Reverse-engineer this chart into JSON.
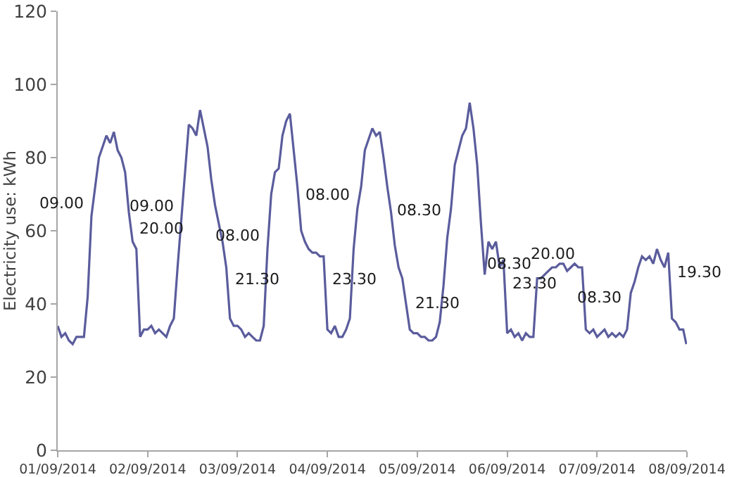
{
  "chart_data": {
    "type": "line",
    "ylabel": "Electricity use: kWh",
    "xlim": [
      "2014-09-01",
      "2014-09-08"
    ],
    "xticks": [
      {
        "value": "2014-09-01",
        "label": "01/09/2014"
      },
      {
        "value": "2014-09-02",
        "label": "02/09/2014"
      },
      {
        "value": "2014-09-03",
        "label": "03/09/2014"
      },
      {
        "value": "2014-09-04",
        "label": "04/09/2014"
      },
      {
        "value": "2014-09-05",
        "label": "05/09/2014"
      },
      {
        "value": "2014-09-06",
        "label": "06/09/2014"
      },
      {
        "value": "2014-09-07",
        "label": "07/09/2014"
      },
      {
        "value": "2014-09-08",
        "label": "08/09/2014"
      }
    ],
    "ylim": [
      0,
      120
    ],
    "yticks": [
      0,
      20,
      40,
      60,
      80,
      100,
      120
    ],
    "marker": "none",
    "line_style": "solid",
    "series": [
      {
        "color": "#5a5c9c",
        "x": [
          "2014-09-01T00:00",
          "2014-09-01T01:00",
          "2014-09-01T02:00",
          "2014-09-01T03:00",
          "2014-09-01T04:00",
          "2014-09-01T05:00",
          "2014-09-01T06:00",
          "2014-09-01T07:00",
          "2014-09-01T08:00",
          "2014-09-01T09:00",
          "2014-09-01T10:00",
          "2014-09-01T11:00",
          "2014-09-01T12:00",
          "2014-09-01T13:00",
          "2014-09-01T14:00",
          "2014-09-01T15:00",
          "2014-09-01T16:00",
          "2014-09-01T17:00",
          "2014-09-01T18:00",
          "2014-09-01T19:00",
          "2014-09-01T20:00",
          "2014-09-01T21:00",
          "2014-09-01T22:00",
          "2014-09-01T23:00",
          "2014-09-02T00:00",
          "2014-09-02T01:00",
          "2014-09-02T02:00",
          "2014-09-02T03:00",
          "2014-09-02T04:00",
          "2014-09-02T05:00",
          "2014-09-02T06:00",
          "2014-09-02T07:00",
          "2014-09-02T08:00",
          "2014-09-02T09:00",
          "2014-09-02T10:00",
          "2014-09-02T11:00",
          "2014-09-02T12:00",
          "2014-09-02T13:00",
          "2014-09-02T14:00",
          "2014-09-02T15:00",
          "2014-09-02T16:00",
          "2014-09-02T17:00",
          "2014-09-02T18:00",
          "2014-09-02T19:00",
          "2014-09-02T20:00",
          "2014-09-02T21:00",
          "2014-09-02T22:00",
          "2014-09-02T23:00",
          "2014-09-03T00:00",
          "2014-09-03T01:00",
          "2014-09-03T02:00",
          "2014-09-03T03:00",
          "2014-09-03T04:00",
          "2014-09-03T05:00",
          "2014-09-03T06:00",
          "2014-09-03T07:00",
          "2014-09-03T08:00",
          "2014-09-03T09:00",
          "2014-09-03T10:00",
          "2014-09-03T11:00",
          "2014-09-03T12:00",
          "2014-09-03T13:00",
          "2014-09-03T14:00",
          "2014-09-03T15:00",
          "2014-09-03T16:00",
          "2014-09-03T17:00",
          "2014-09-03T18:00",
          "2014-09-03T19:00",
          "2014-09-03T20:00",
          "2014-09-03T21:00",
          "2014-09-03T22:00",
          "2014-09-03T23:00",
          "2014-09-04T00:00",
          "2014-09-04T01:00",
          "2014-09-04T02:00",
          "2014-09-04T03:00",
          "2014-09-04T04:00",
          "2014-09-04T05:00",
          "2014-09-04T06:00",
          "2014-09-04T07:00",
          "2014-09-04T08:00",
          "2014-09-04T09:00",
          "2014-09-04T10:00",
          "2014-09-04T11:00",
          "2014-09-04T12:00",
          "2014-09-04T13:00",
          "2014-09-04T14:00",
          "2014-09-04T15:00",
          "2014-09-04T16:00",
          "2014-09-04T17:00",
          "2014-09-04T18:00",
          "2014-09-04T19:00",
          "2014-09-04T20:00",
          "2014-09-04T21:00",
          "2014-09-04T22:00",
          "2014-09-04T23:00",
          "2014-09-05T00:00",
          "2014-09-05T01:00",
          "2014-09-05T02:00",
          "2014-09-05T03:00",
          "2014-09-05T04:00",
          "2014-09-05T05:00",
          "2014-09-05T06:00",
          "2014-09-05T07:00",
          "2014-09-05T08:00",
          "2014-09-05T09:00",
          "2014-09-05T10:00",
          "2014-09-05T11:00",
          "2014-09-05T12:00",
          "2014-09-05T13:00",
          "2014-09-05T14:00",
          "2014-09-05T15:00",
          "2014-09-05T16:00",
          "2014-09-05T17:00",
          "2014-09-05T18:00",
          "2014-09-05T19:00",
          "2014-09-05T20:00",
          "2014-09-05T21:00",
          "2014-09-05T22:00",
          "2014-09-05T23:00",
          "2014-09-06T00:00",
          "2014-09-06T01:00",
          "2014-09-06T02:00",
          "2014-09-06T03:00",
          "2014-09-06T04:00",
          "2014-09-06T05:00",
          "2014-09-06T06:00",
          "2014-09-06T07:00",
          "2014-09-06T08:00",
          "2014-09-06T09:00",
          "2014-09-06T10:00",
          "2014-09-06T11:00",
          "2014-09-06T12:00",
          "2014-09-06T13:00",
          "2014-09-06T14:00",
          "2014-09-06T15:00",
          "2014-09-06T16:00",
          "2014-09-06T17:00",
          "2014-09-06T18:00",
          "2014-09-06T19:00",
          "2014-09-06T20:00",
          "2014-09-06T21:00",
          "2014-09-06T22:00",
          "2014-09-06T23:00",
          "2014-09-07T00:00",
          "2014-09-07T01:00",
          "2014-09-07T02:00",
          "2014-09-07T03:00",
          "2014-09-07T04:00",
          "2014-09-07T05:00",
          "2014-09-07T06:00",
          "2014-09-07T07:00",
          "2014-09-07T08:00",
          "2014-09-07T09:00",
          "2014-09-07T10:00",
          "2014-09-07T11:00",
          "2014-09-07T12:00",
          "2014-09-07T13:00",
          "2014-09-07T14:00",
          "2014-09-07T15:00",
          "2014-09-07T16:00",
          "2014-09-07T17:00",
          "2014-09-07T18:00",
          "2014-09-07T19:00",
          "2014-09-07T20:00",
          "2014-09-07T21:00",
          "2014-09-07T22:00",
          "2014-09-07T23:00",
          "2014-09-07T23:50"
        ],
        "values": [
          34,
          31,
          32,
          30,
          29,
          31,
          31,
          31,
          42,
          64,
          72,
          80,
          83,
          86,
          84,
          87,
          82,
          80,
          76,
          65,
          57,
          55,
          31,
          33,
          33,
          34,
          32,
          33,
          32,
          31,
          34,
          36,
          50,
          63,
          76,
          89,
          88,
          86,
          93,
          88,
          83,
          74,
          67,
          62,
          57,
          50,
          36,
          34,
          34,
          33,
          31,
          32,
          31,
          30,
          30,
          34,
          55,
          70,
          76,
          77,
          86,
          90,
          92,
          82,
          72,
          60,
          57,
          55,
          54,
          54,
          53,
          53,
          33,
          32,
          34,
          31,
          31,
          33,
          36,
          55,
          66,
          72,
          82,
          85,
          88,
          86,
          87,
          80,
          72,
          65,
          56,
          50,
          47,
          40,
          33,
          32,
          32,
          31,
          31,
          30,
          30,
          31,
          35,
          45,
          58,
          66,
          78,
          82,
          86,
          88,
          95,
          88,
          78,
          62,
          48,
          57,
          55,
          57,
          50,
          52,
          32,
          33,
          31,
          32,
          30,
          32,
          31,
          31,
          47,
          47,
          48,
          49,
          50,
          50,
          51,
          51,
          49,
          50,
          51,
          50,
          50,
          33,
          32,
          33,
          31,
          32,
          33,
          31,
          32,
          31,
          32,
          31,
          33,
          43,
          46,
          50,
          53,
          52,
          53,
          51,
          55,
          52,
          50,
          54,
          36,
          35,
          33,
          33,
          29
        ]
      }
    ],
    "annotations": [
      {
        "text": "09.00",
        "x": "2014-09-01T09:00",
        "y": 64
      },
      {
        "text": "20.00",
        "x": "2014-09-01T20:00",
        "y": 57
      },
      {
        "text": "09.00",
        "x": "2014-09-02T09:00",
        "y": 63
      },
      {
        "text": "21.30",
        "x": "2014-09-02T21:30",
        "y": 43
      },
      {
        "text": "08.00",
        "x": "2014-09-03T08:00",
        "y": 55
      },
      {
        "text": "23.30",
        "x": "2014-09-03T23:30",
        "y": 43
      },
      {
        "text": "08.00",
        "x": "2014-09-04T08:00",
        "y": 66
      },
      {
        "text": "21.30",
        "x": "2014-09-04T21:30",
        "y": 36.5
      },
      {
        "text": "08.30",
        "x": "2014-09-05T08:30",
        "y": 62
      },
      {
        "text": "23.30",
        "x": "2014-09-05T23:30",
        "y": 42
      },
      {
        "text": "08.30",
        "x": "2014-09-06T08:30",
        "y": 47.5
      },
      {
        "text": "20.00",
        "x": "2014-09-06T20:00",
        "y": 50
      },
      {
        "text": "08.30",
        "x": "2014-09-07T08:30",
        "y": 38
      },
      {
        "text": "19.30",
        "x": "2014-09-07T19:30",
        "y": 45
      }
    ]
  }
}
